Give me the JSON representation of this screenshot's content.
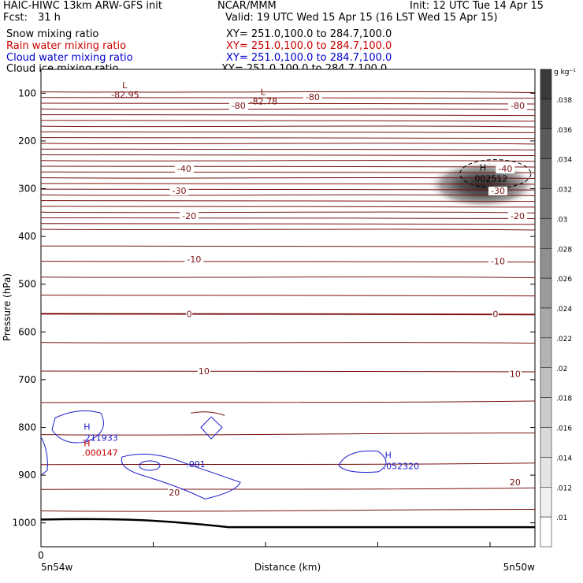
{
  "header": {
    "model": "HAIC-HIWC 13km ARW-GFS init",
    "org": "NCAR/MMM",
    "init": "Init: 12 UTC Tue 14 Apr 15",
    "fcst_label": "Fcst:",
    "fcst_value": "31 h",
    "valid": "Valid: 19 UTC Wed 15 Apr 15 (16 LST Wed 15 Apr 15)"
  },
  "fields": [
    {
      "name": "Snow mixing ratio",
      "xy": "XY= 251.0,100.0 to 284.7,100.0",
      "color": "#000000"
    },
    {
      "name": "Rain water mixing ratio",
      "xy": "XY= 251.0,100.0 to 284.7,100.0",
      "color": "#cc0000"
    },
    {
      "name": "Cloud water mixing ratio",
      "xy": "XY= 251.0,100.0 to 284.7,100.0",
      "color": "#0000cc"
    },
    {
      "name": "Cloud ice mixing ratio",
      "xy": "XY= 251.0,100.0 to 284.7,100.0",
      "color": "#000000"
    }
  ],
  "chart_data": {
    "type": "contour",
    "ylabel": "Pressure (hPa)",
    "xlabel": "Distance (km)",
    "y_ticks": [
      100,
      200,
      300,
      400,
      500,
      600,
      700,
      800,
      900,
      1000
    ],
    "ylim": [
      50,
      1050
    ],
    "y_direction": "pressure increases downward",
    "x_tick_zero": "0",
    "x_left_label": "5n54w",
    "x_right_label": "5n50w",
    "colorbar": {
      "unit": "g kg⁻¹",
      "levels": [
        ".01",
        ".012",
        ".014",
        ".016",
        ".018",
        ".02",
        ".022",
        ".024",
        ".026",
        ".028",
        ".03",
        ".032",
        ".034",
        ".036",
        ".038"
      ],
      "colors": [
        "#ffffff",
        "#f0f0f0",
        "#e4e4e4",
        "#d8d8d8",
        "#cccccc",
        "#c0c0c0",
        "#b4b4b4",
        "#a8a8a8",
        "#9c9c9c",
        "#909090",
        "#848484",
        "#787878",
        "#6a6a6a",
        "#5a5a5a",
        "#484848"
      ]
    },
    "temperature_contours": [
      {
        "value": "-80",
        "labels": [
          {
            "x": 0.4,
            "p": 126
          },
          {
            "x": 0.55,
            "p": 108
          },
          {
            "x": 0.965,
            "p": 126
          }
        ]
      },
      {
        "value": "-40",
        "labels": [
          {
            "x": 0.29,
            "p": 258
          },
          {
            "x": 0.94,
            "p": 258
          }
        ]
      },
      {
        "value": "-30",
        "labels": [
          {
            "x": 0.28,
            "p": 304
          },
          {
            "x": 0.925,
            "p": 304
          }
        ]
      },
      {
        "value": "-20",
        "labels": [
          {
            "x": 0.3,
            "p": 357
          },
          {
            "x": 0.965,
            "p": 357
          }
        ]
      },
      {
        "value": "-10",
        "labels": [
          {
            "x": 0.31,
            "p": 448
          },
          {
            "x": 0.925,
            "p": 452
          }
        ]
      },
      {
        "value": "0",
        "labels": [
          {
            "x": 0.3,
            "p": 562
          },
          {
            "x": 0.92,
            "p": 562
          }
        ]
      },
      {
        "value": "10",
        "labels": [
          {
            "x": 0.33,
            "p": 682
          },
          {
            "x": 0.96,
            "p": 688
          }
        ]
      },
      {
        "value": "20",
        "labels": [
          {
            "x": 0.27,
            "p": 936
          },
          {
            "x": 0.96,
            "p": 915
          }
        ]
      }
    ],
    "temperature_extrema": [
      {
        "type": "L",
        "value": "-82.95",
        "x": 0.19,
        "p": 86
      },
      {
        "type": "L",
        "value": "-82.78",
        "x": 0.47,
        "p": 100
      }
    ],
    "cloud_ice_max": {
      "type": "H",
      "value": ".002512",
      "x": 0.92,
      "p": 282
    },
    "cloud_water_max": [
      {
        "type": "H",
        "value": ".211933",
        "x": 0.045,
        "p": 808
      },
      {
        "type": "H",
        "value": ".052320",
        "x": 0.655,
        "p": 868
      }
    ],
    "cloud_water_contour_labels": [
      {
        "value": ".001",
        "x": 0.23,
        "p": 880
      }
    ],
    "rain_water_max": [
      {
        "type": "H",
        "value": ".000147",
        "x": 0.045,
        "p": 830
      }
    ]
  }
}
